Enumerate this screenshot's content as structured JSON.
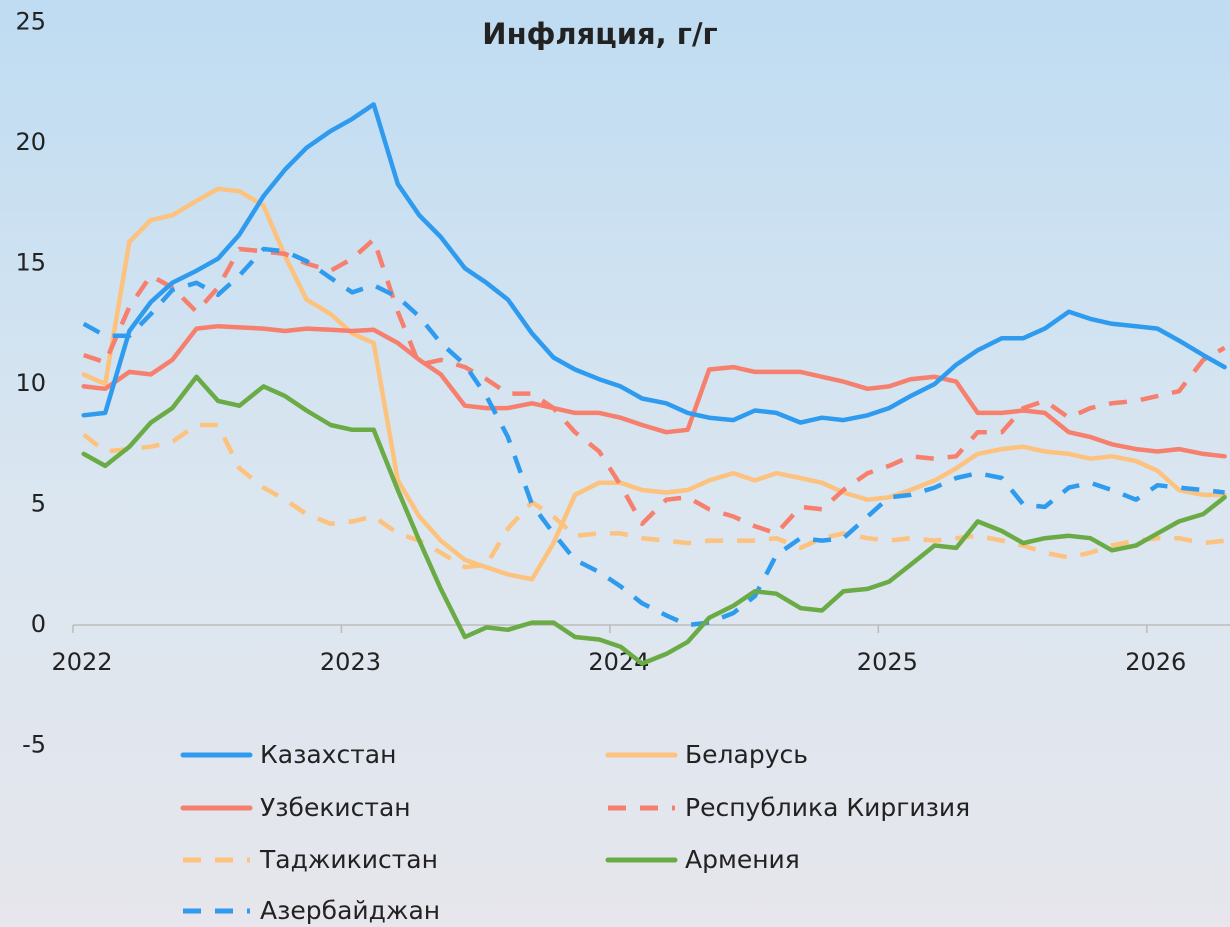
{
  "chart_data": {
    "type": "line",
    "title": "Инфляция, г/г",
    "x": [
      2022.04,
      2022.12,
      2022.21,
      2022.29,
      2022.37,
      2022.46,
      2022.54,
      2022.62,
      2022.71,
      2022.79,
      2022.87,
      2022.96,
      2023.04,
      2023.12,
      2023.21,
      2023.29,
      2023.37,
      2023.46,
      2023.54,
      2023.62,
      2023.71,
      2023.79,
      2023.87,
      2023.96,
      2024.04,
      2024.12,
      2024.21,
      2024.29,
      2024.37,
      2024.46,
      2024.54,
      2024.62,
      2024.71,
      2024.79,
      2024.87,
      2024.96,
      2025.04,
      2025.12,
      2025.21,
      2025.29,
      2025.37,
      2025.46,
      2025.54,
      2025.62,
      2025.71,
      2025.79,
      2025.87,
      2025.96,
      2026.04,
      2026.12,
      2026.21,
      2026.29
    ],
    "xlim": [
      2022,
      2026.31
    ],
    "xticks": [
      2022,
      2023,
      2024,
      2025,
      2026
    ],
    "ylim": [
      -5,
      25
    ],
    "yticks": [
      -5,
      0,
      5,
      10,
      15,
      20,
      25
    ],
    "grid": false,
    "series": [
      {
        "name": "Казахстан",
        "color": "#2e9bef",
        "style": "solid",
        "values": [
          8.7,
          8.8,
          12.2,
          13.4,
          14.2,
          14.7,
          15.2,
          16.2,
          17.8,
          18.9,
          19.8,
          20.5,
          21.0,
          21.6,
          18.3,
          17.0,
          16.1,
          14.8,
          14.2,
          13.5,
          12.1,
          11.1,
          10.6,
          10.2,
          9.9,
          9.4,
          9.2,
          8.8,
          8.6,
          8.5,
          8.9,
          8.8,
          8.4,
          8.6,
          8.5,
          8.7,
          9.0,
          9.5,
          10.0,
          10.8,
          11.4,
          11.9,
          11.9,
          12.3,
          13.0,
          12.7,
          12.5,
          12.4,
          12.3,
          11.8,
          11.2,
          10.7
        ]
      },
      {
        "name": "Беларусь",
        "color": "#fcc27e",
        "style": "solid",
        "values": [
          10.4,
          10.0,
          15.9,
          16.8,
          17.0,
          17.6,
          18.1,
          18.0,
          17.4,
          15.3,
          13.5,
          12.9,
          12.1,
          11.7,
          6.0,
          4.5,
          3.5,
          2.7,
          2.4,
          2.1,
          1.9,
          3.4,
          5.4,
          5.9,
          5.9,
          5.6,
          5.5,
          5.6,
          6.0,
          6.3,
          6.0,
          6.3,
          6.1,
          5.9,
          5.5,
          5.2,
          5.3,
          5.6,
          6.0,
          6.5,
          7.1,
          7.3,
          7.4,
          7.2,
          7.1,
          6.9,
          7.0,
          6.8,
          6.4,
          5.6,
          5.4,
          5.4
        ]
      },
      {
        "name": "Узбекистан",
        "color": "#f67f6d",
        "style": "solid",
        "values": [
          9.9,
          9.8,
          10.5,
          10.4,
          11.0,
          12.3,
          12.4,
          12.35,
          12.3,
          12.2,
          12.3,
          12.25,
          12.2,
          12.25,
          11.7,
          11.0,
          10.4,
          9.1,
          9.0,
          9.0,
          9.2,
          9.0,
          8.8,
          8.8,
          8.6,
          8.3,
          8.0,
          8.1,
          10.6,
          10.7,
          10.5,
          10.5,
          10.5,
          10.3,
          10.1,
          9.8,
          9.9,
          10.2,
          10.3,
          10.1,
          8.8,
          8.8,
          8.9,
          8.8,
          8.0,
          7.8,
          7.5,
          7.3,
          7.2,
          7.3,
          7.1,
          7.0
        ]
      },
      {
        "name": "Республика Киргизия",
        "color": "#f67f6d",
        "style": "dashed",
        "values": [
          11.2,
          10.9,
          13.2,
          14.5,
          14.0,
          13.0,
          14.0,
          15.6,
          15.5,
          15.4,
          15.0,
          14.7,
          15.2,
          16.0,
          13.0,
          10.8,
          11.0,
          10.7,
          10.2,
          9.6,
          9.6,
          9.0,
          8.0,
          7.2,
          5.8,
          4.2,
          5.2,
          5.3,
          4.8,
          4.5,
          4.1,
          3.8,
          4.9,
          4.8,
          5.6,
          6.3,
          6.6,
          7.0,
          6.9,
          7.0,
          8.0,
          8.0,
          9.0,
          9.3,
          8.6,
          9.0,
          9.2,
          9.3,
          9.5,
          9.7,
          11.0,
          11.5
        ]
      },
      {
        "name": "Таджикистан",
        "color": "#fcc27e",
        "style": "dashed",
        "values": [
          7.9,
          7.2,
          7.3,
          7.4,
          7.6,
          8.3,
          8.3,
          6.5,
          5.7,
          5.2,
          4.6,
          4.2,
          4.3,
          4.5,
          3.8,
          3.5,
          3.0,
          2.4,
          2.5,
          4.0,
          5.1,
          4.5,
          3.7,
          3.8,
          3.8,
          3.6,
          3.5,
          3.4,
          3.5,
          3.5,
          3.5,
          3.6,
          3.2,
          3.6,
          3.8,
          3.6,
          3.5,
          3.6,
          3.5,
          3.6,
          3.7,
          3.5,
          3.3,
          3.0,
          2.8,
          3.0,
          3.3,
          3.5,
          3.6,
          3.6,
          3.4,
          3.5
        ]
      },
      {
        "name": "Армения",
        "color": "#6aab45",
        "style": "solid",
        "values": [
          7.1,
          6.6,
          7.4,
          8.4,
          9.0,
          10.3,
          9.3,
          9.1,
          9.9,
          9.5,
          8.9,
          8.3,
          8.1,
          8.1,
          5.6,
          3.5,
          1.5,
          -0.5,
          -0.1,
          -0.2,
          0.1,
          0.1,
          -0.5,
          -0.6,
          -0.9,
          -1.6,
          -1.2,
          -0.7,
          0.3,
          0.8,
          1.4,
          1.3,
          0.7,
          0.6,
          1.4,
          1.5,
          1.8,
          2.5,
          3.3,
          3.2,
          4.3,
          3.9,
          3.4,
          3.6,
          3.7,
          3.6,
          3.1,
          3.3,
          3.8,
          4.3,
          4.6,
          5.3
        ]
      },
      {
        "name": "Азербайджан",
        "color": "#2e9bef",
        "style": "dashed",
        "values": [
          12.5,
          12.0,
          12.0,
          12.9,
          13.9,
          14.2,
          13.7,
          14.5,
          15.6,
          15.5,
          15.1,
          14.4,
          13.8,
          14.1,
          13.6,
          12.8,
          11.7,
          10.8,
          9.5,
          7.8,
          5.0,
          3.8,
          2.7,
          2.2,
          1.6,
          0.9,
          0.4,
          0.0,
          0.1,
          0.5,
          1.2,
          2.9,
          3.6,
          3.5,
          3.6,
          4.5,
          5.3,
          5.4,
          5.7,
          6.1,
          6.3,
          6.1,
          5.0,
          4.9,
          5.7,
          5.9,
          5.6,
          5.2,
          5.8,
          5.7,
          5.6,
          5.5
        ]
      }
    ]
  }
}
